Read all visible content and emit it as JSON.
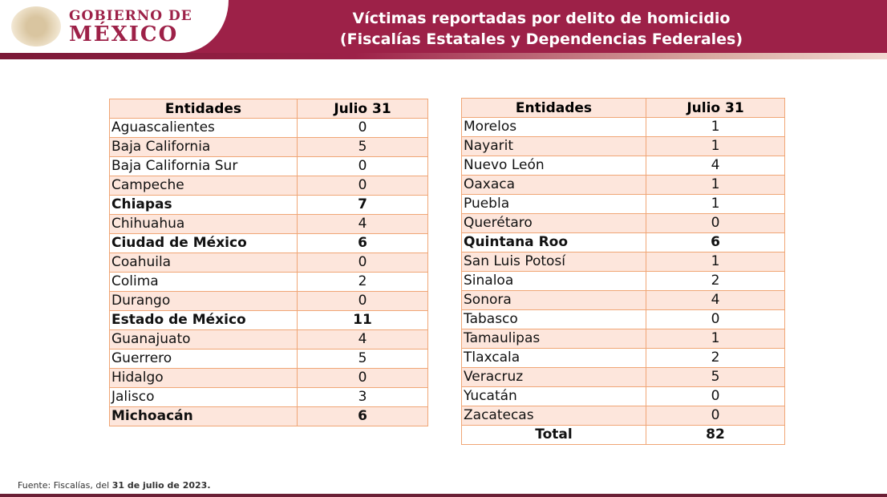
{
  "header": {
    "brand_line1": "GOBIERNO DE",
    "brand_line2": "MÉXICO",
    "title_line1": "Víctimas reportadas por delito de homicidio",
    "title_line2": "(Fiscalías Estatales y Dependencias Federales)"
  },
  "colors": {
    "brand": "#9d2148",
    "row_shade": "#fde6dc",
    "border": "#f0a676"
  },
  "left_table": {
    "headers": [
      "Entidades",
      "Julio 31"
    ],
    "rows": [
      [
        "Aguascalientes",
        "0",
        false
      ],
      [
        "Baja California",
        "5",
        false
      ],
      [
        "Baja California Sur",
        "0",
        false
      ],
      [
        "Campeche",
        "0",
        false
      ],
      [
        "Chiapas",
        "7",
        true
      ],
      [
        "Chihuahua",
        "4",
        false
      ],
      [
        "Ciudad de México",
        "6",
        true
      ],
      [
        "Coahuila",
        "0",
        false
      ],
      [
        "Colima",
        "2",
        false
      ],
      [
        "Durango",
        "0",
        false
      ],
      [
        "Estado de México",
        "11",
        true
      ],
      [
        "Guanajuato",
        "4",
        false
      ],
      [
        "Guerrero",
        "5",
        false
      ],
      [
        "Hidalgo",
        "0",
        false
      ],
      [
        "Jalisco",
        "3",
        false
      ],
      [
        "Michoacán",
        "6",
        true
      ]
    ]
  },
  "right_table": {
    "headers": [
      "Entidades",
      "Julio 31"
    ],
    "rows": [
      [
        "Morelos",
        "1",
        false
      ],
      [
        "Nayarit",
        "1",
        false
      ],
      [
        "Nuevo León",
        "4",
        false
      ],
      [
        "Oaxaca",
        "1",
        false
      ],
      [
        "Puebla",
        "1",
        false
      ],
      [
        "Querétaro",
        "0",
        false
      ],
      [
        "Quintana Roo",
        "6",
        true
      ],
      [
        "San Luis Potosí",
        "1",
        false
      ],
      [
        "Sinaloa",
        "2",
        false
      ],
      [
        "Sonora",
        "4",
        false
      ],
      [
        "Tabasco",
        "0",
        false
      ],
      [
        "Tamaulipas",
        "1",
        false
      ],
      [
        "Tlaxcala",
        "2",
        false
      ],
      [
        "Veracruz",
        "5",
        false
      ],
      [
        "Yucatán",
        "0",
        false
      ],
      [
        "Zacatecas",
        "0",
        false
      ]
    ],
    "total_label": "Total",
    "total_value": "82"
  },
  "footer": {
    "prefix": "Fuente: Fiscalías, del ",
    "date": "31 de julio de 2023."
  }
}
